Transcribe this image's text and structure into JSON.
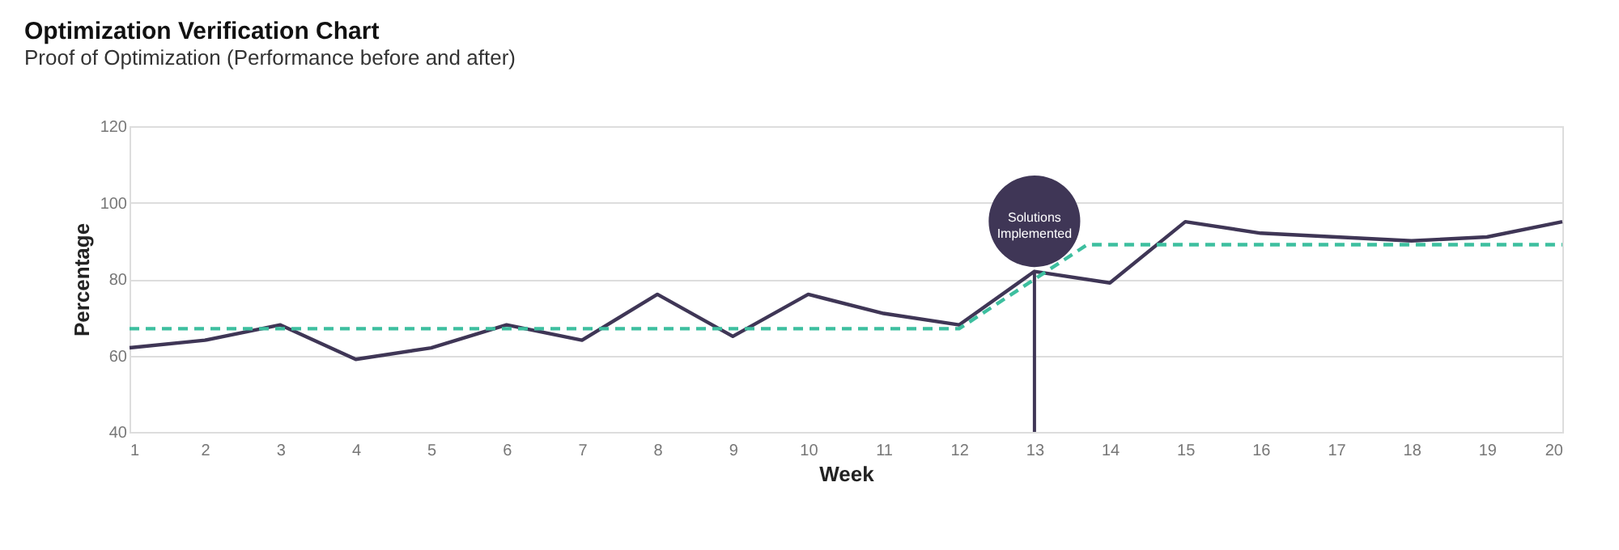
{
  "chart_data": {
    "type": "line",
    "title": "Optimization Verification Chart",
    "subtitle": "Proof of Optimization (Performance before and after)",
    "xlabel": "Week",
    "ylabel": "Percentage",
    "x": [
      1,
      2,
      3,
      4,
      5,
      6,
      7,
      8,
      9,
      10,
      11,
      12,
      13,
      14,
      15,
      16,
      17,
      18,
      19,
      20
    ],
    "series": [
      {
        "color": "#3f3656",
        "line_style": "solid",
        "values": [
          62,
          64,
          68,
          59,
          62,
          68,
          64,
          76,
          65,
          76,
          71,
          68,
          82,
          79,
          95,
          92,
          91,
          90,
          91,
          95
        ]
      },
      {
        "color": "#3dbf9f",
        "line_style": "dashed",
        "x": [
          1,
          12,
          13.7,
          20
        ],
        "values": [
          67,
          67,
          89,
          89
        ]
      }
    ],
    "annotations": [
      {
        "text": "Solutions Implemented",
        "x": 13,
        "y": 82
      }
    ],
    "xlim": [
      1,
      20
    ],
    "xticks": [
      1,
      2,
      3,
      4,
      5,
      6,
      7,
      8,
      9,
      10,
      11,
      12,
      13,
      14,
      15,
      16,
      17,
      18,
      19,
      20
    ],
    "ylim": [
      40,
      120
    ],
    "yticks": [
      40,
      60,
      80,
      100,
      120
    ],
    "grid": "y",
    "marker": "none"
  }
}
